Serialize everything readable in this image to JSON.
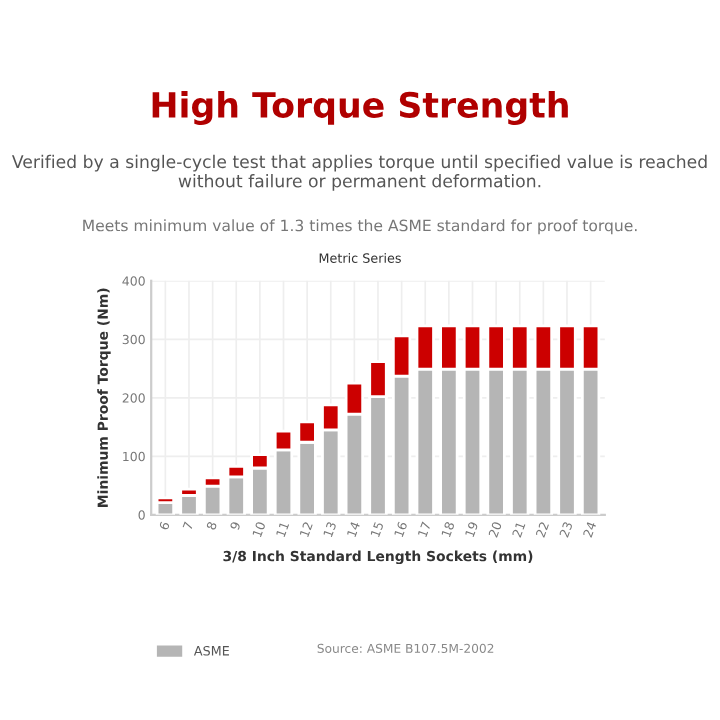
{
  "chart_data": {
    "type": "bar",
    "title": "High Torque Strength",
    "subtitle": "Verified by a single-cycle test that applies torque until specified value is reached without failure or permanent deformation.",
    "annotations": [
      "Meets minimum value of 1.3 times the ASME standard for proof torque.",
      "Metric Series",
      "Source: ASME B107.5M-2002"
    ],
    "xlabel": "3/8 Inch Standard Length Sockets (mm)",
    "ylabel": "Minimum Proof Torque (Nm)",
    "categories": [
      "6",
      "7",
      "8",
      "9",
      "10",
      "11",
      "12",
      "13",
      "14",
      "15",
      "16",
      "17",
      "18",
      "19",
      "20",
      "21",
      "22",
      "23",
      "24"
    ],
    "stacked": true,
    "series": [
      {
        "name": "ASME",
        "color": "#b5b5b5",
        "values": [
          21,
          33,
          49,
          65,
          80,
          111,
          124,
          145,
          172,
          202,
          237,
          249,
          249,
          249,
          249,
          249,
          249,
          249,
          249
        ]
      },
      {
        "color": "#cc0000",
        "values": [
          8,
          11,
          14,
          18,
          23,
          32,
          35,
          43,
          53,
          60,
          69,
          74,
          74,
          74,
          74,
          74,
          74,
          74,
          74
        ]
      }
    ],
    "ylim": [
      0,
      400
    ],
    "yticks": [
      0,
      100,
      200,
      300,
      400
    ],
    "grid": true,
    "legend": "bottom left"
  }
}
